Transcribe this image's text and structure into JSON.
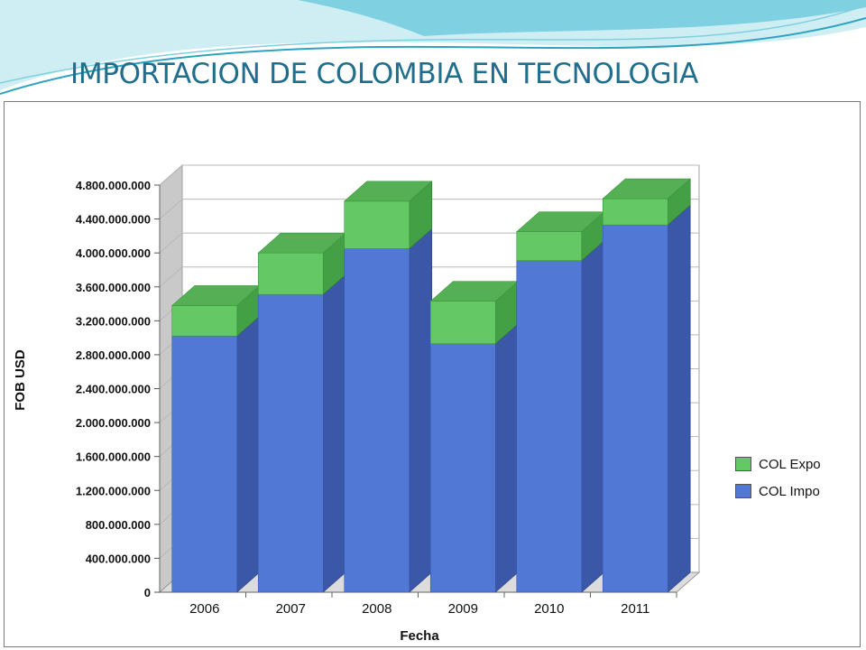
{
  "slide": {
    "title": "IMPORTACION DE COLOMBIA EN TECNOLOGIA"
  },
  "colors": {
    "title": "#1f6e8d",
    "wave_light": "#cfeef4",
    "wave_mid": "#7fd0e0",
    "wave_dark": "#2ea3c0",
    "impo_front": "#5278d6",
    "impo_side": "#3b58a8",
    "expo_front": "#64c864",
    "expo_top": "#55b055",
    "expo_side": "#44a044",
    "wall": "#c9c9c9",
    "grid": "#b8b8b8"
  },
  "chart_data": {
    "type": "bar",
    "stacked": true,
    "three_d": true,
    "categories": [
      "2006",
      "2007",
      "2008",
      "2009",
      "2010",
      "2011"
    ],
    "series": [
      {
        "name": "COL Impo",
        "color": "#5278d6",
        "values": [
          3020000000,
          3510000000,
          4050000000,
          2930000000,
          3910000000,
          4330000000
        ]
      },
      {
        "name": "COL Expo",
        "color": "#64c864",
        "values": [
          360000000,
          490000000,
          560000000,
          500000000,
          340000000,
          310000000
        ]
      }
    ],
    "ylim": [
      0,
      4800000000
    ],
    "ytick_step": 400000000,
    "ytick_labels": [
      "0",
      "400.000.000",
      "800.000.000",
      "1.200.000.000",
      "1.600.000.000",
      "2.000.000.000",
      "2.400.000.000",
      "2.800.000.000",
      "3.200.000.000",
      "3.600.000.000",
      "4.000.000.000",
      "4.400.000.000",
      "4.800.000.000"
    ],
    "xlabel": "Fecha",
    "ylabel": "FOB USD",
    "legend_position": "right",
    "grid": true
  }
}
